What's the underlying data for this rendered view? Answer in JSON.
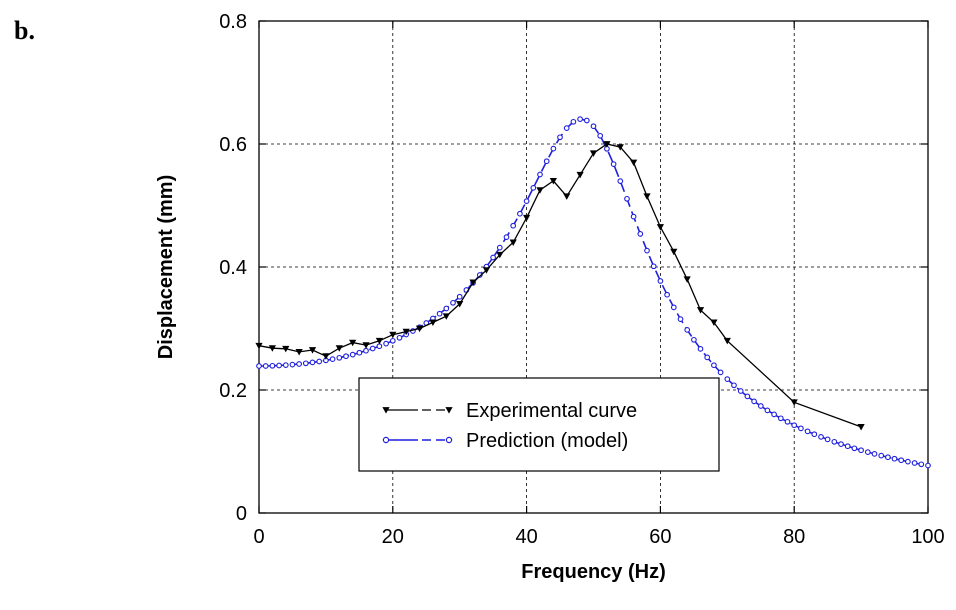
{
  "panel_label": "b.",
  "chart_data": {
    "type": "line",
    "xlabel": "Frequency (Hz)",
    "ylabel": "Displacement (mm)",
    "xlim": [
      0,
      100
    ],
    "ylim": [
      0,
      0.8
    ],
    "x_ticks": [
      "0",
      "20",
      "40",
      "60",
      "80",
      "100"
    ],
    "y_ticks": [
      "0",
      "0.2",
      "0.4",
      "0.6",
      "0.8"
    ],
    "grid": true,
    "legend_position": "bottom-left",
    "series": [
      {
        "name": "Experimental curve",
        "color": "#000000",
        "marker": "triangle-down",
        "x": [
          0,
          2,
          4,
          6,
          8,
          10,
          12,
          14,
          16,
          18,
          20,
          22,
          24,
          26,
          28,
          30,
          32,
          34,
          36,
          38,
          40,
          42,
          44,
          46,
          48,
          50,
          52,
          54,
          56,
          58,
          60,
          62,
          64,
          66,
          68,
          70,
          80,
          90
        ],
        "y": [
          0.272,
          0.268,
          0.267,
          0.262,
          0.265,
          0.255,
          0.268,
          0.277,
          0.273,
          0.28,
          0.29,
          0.295,
          0.3,
          0.31,
          0.32,
          0.34,
          0.375,
          0.395,
          0.42,
          0.44,
          0.48,
          0.525,
          0.54,
          0.515,
          0.55,
          0.585,
          0.6,
          0.595,
          0.57,
          0.515,
          0.465,
          0.425,
          0.38,
          0.33,
          0.31,
          0.28,
          0.18,
          0.14
        ]
      },
      {
        "name": "Prediction (model)",
        "color": "#1f1fdd",
        "marker": "circle",
        "model": {
          "A": 0.239,
          "f0": 50,
          "zeta": 0.19,
          "x_from": 0,
          "x_to": 100,
          "step": 1
        }
      }
    ]
  }
}
